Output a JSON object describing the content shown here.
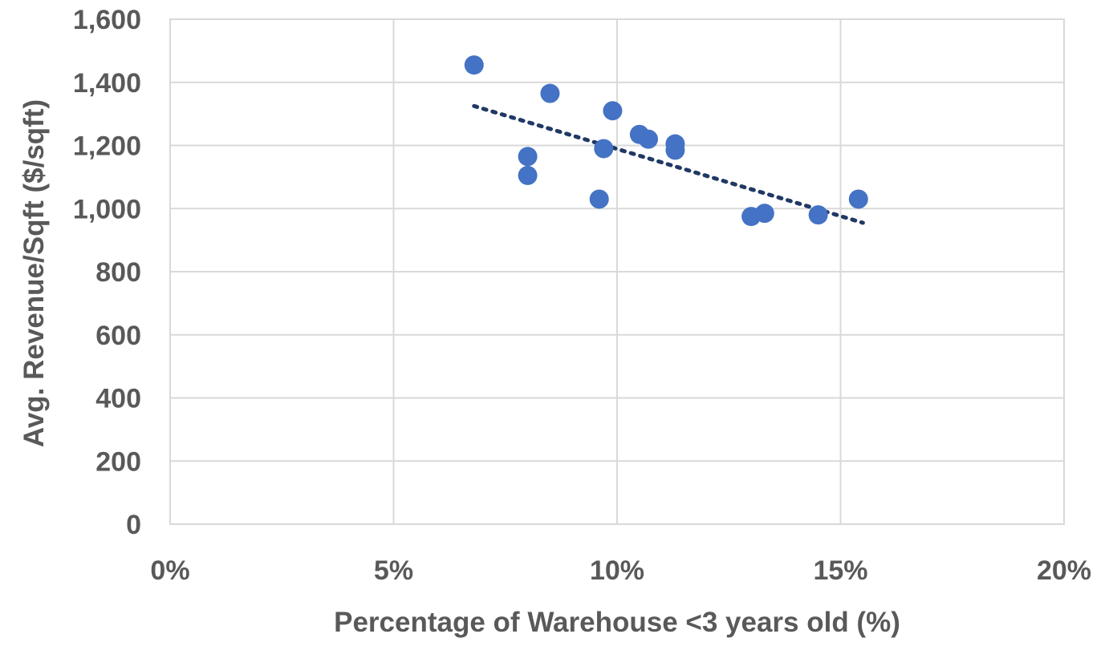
{
  "chart_data": {
    "type": "scatter",
    "xlabel": "Percentage of Warehouse <3 years old (%)",
    "ylabel": "Avg. Revenue/Sqft ($/sqft)",
    "xlim": [
      0,
      20
    ],
    "ylim": [
      0,
      1600
    ],
    "x_ticks": [
      0,
      5,
      10,
      15,
      20
    ],
    "x_tick_labels": [
      "0%",
      "5%",
      "10%",
      "15%",
      "20%"
    ],
    "y_ticks": [
      0,
      200,
      400,
      600,
      800,
      1000,
      1200,
      1400,
      1600
    ],
    "y_tick_labels": [
      "0",
      "200",
      "400",
      "600",
      "800",
      "1,000",
      "1,200",
      "1,400",
      "1,600"
    ],
    "grid": true,
    "legend": "none",
    "series": [
      {
        "color": "#4472c4",
        "marker": "circle",
        "points": [
          {
            "x": 6.8,
            "y": 1455
          },
          {
            "x": 8.5,
            "y": 1365
          },
          {
            "x": 9.9,
            "y": 1310
          },
          {
            "x": 8.0,
            "y": 1165
          },
          {
            "x": 8.0,
            "y": 1105
          },
          {
            "x": 9.7,
            "y": 1190
          },
          {
            "x": 10.5,
            "y": 1235
          },
          {
            "x": 10.7,
            "y": 1220
          },
          {
            "x": 11.3,
            "y": 1205
          },
          {
            "x": 11.3,
            "y": 1185
          },
          {
            "x": 9.6,
            "y": 1030
          },
          {
            "x": 13.0,
            "y": 975
          },
          {
            "x": 13.3,
            "y": 985
          },
          {
            "x": 14.5,
            "y": 980
          },
          {
            "x": 15.4,
            "y": 1030
          }
        ]
      }
    ],
    "trendline": {
      "style": "dotted",
      "color": "#203864",
      "start": {
        "x": 6.8,
        "y": 1325
      },
      "end": {
        "x": 15.5,
        "y": 955
      }
    }
  }
}
